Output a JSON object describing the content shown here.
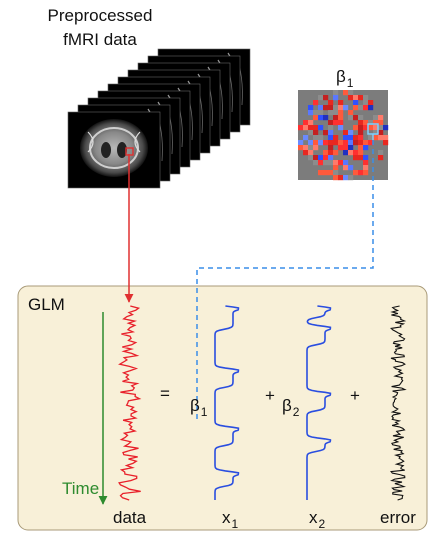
{
  "header": {
    "title_line1": "Preprocessed",
    "title_line2": "fMRI data"
  },
  "beta_map": {
    "symbol": "β",
    "subscript": "1"
  },
  "glm": {
    "label": "GLM",
    "time_label": "Time",
    "equals": "=",
    "plus": "+",
    "beta": "β",
    "sub1": "1",
    "sub2": "2",
    "x": "x",
    "data_label": "data",
    "error_label": "error"
  },
  "colors": {
    "panel_fill": "#f8f0d8",
    "panel_border": "#a89a78",
    "data_trace": "#e8202a",
    "regressor": "#2a4ee0",
    "error_trace": "#111111",
    "time_arrow": "#2e8b2e",
    "connector_red": "#e03030",
    "connector_blue": "#3a8ee8"
  }
}
